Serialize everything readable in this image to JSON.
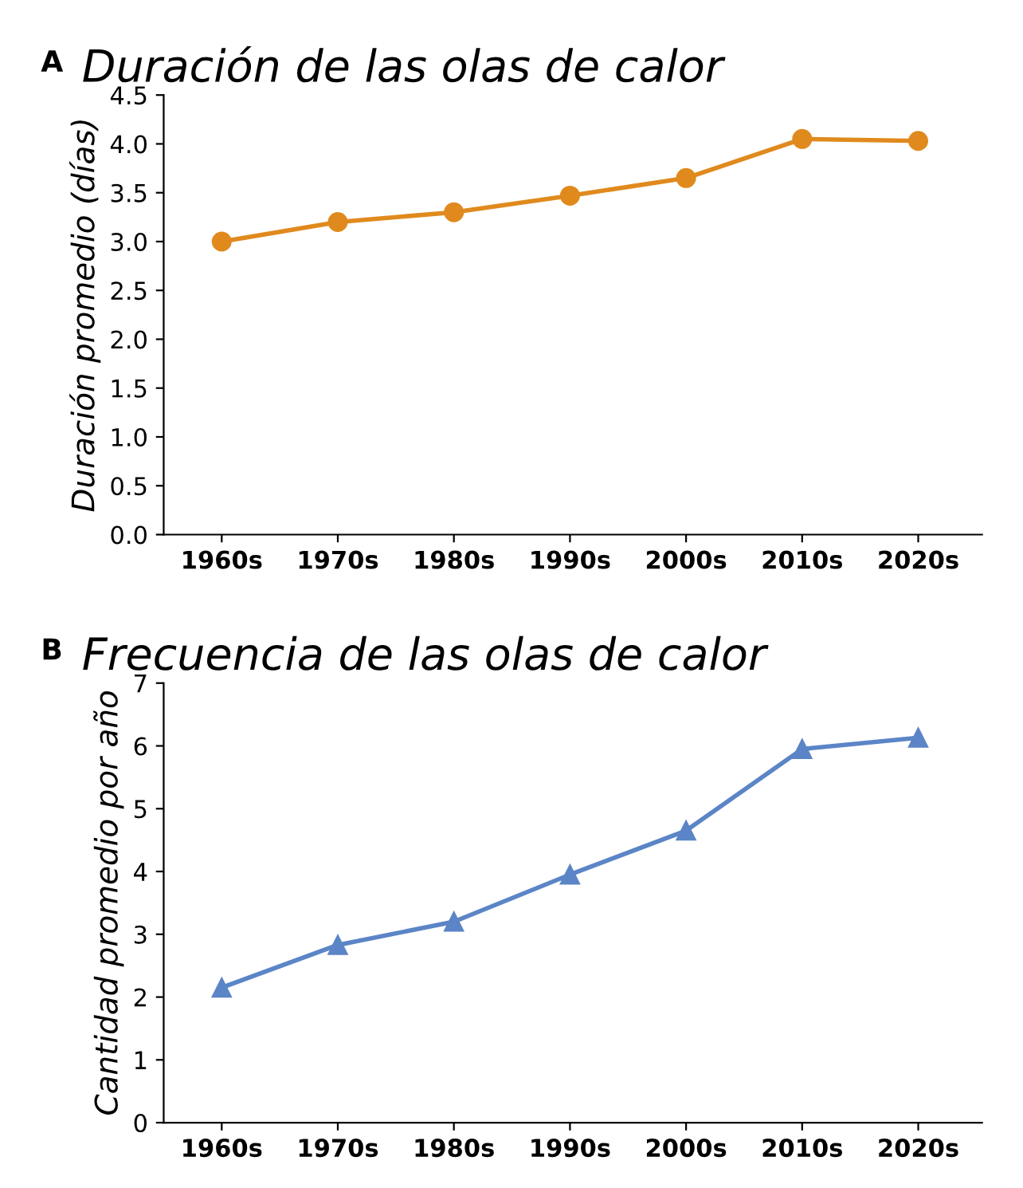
{
  "chart_data": [
    {
      "type": "line",
      "title": "Duración de las olas de calor",
      "annotations": [
        "A"
      ],
      "ylabel": "Duración promedio (días)",
      "categories": [
        "1960s",
        "1970s",
        "1980s",
        "1990s",
        "2000s",
        "2010s",
        "2020s"
      ],
      "series": [
        {
          "color": "#e08a1e",
          "values": [
            3.0,
            3.2,
            3.3,
            3.47,
            3.65,
            4.05,
            4.03
          ]
        }
      ],
      "marker": "circle",
      "ylim": [
        0.0,
        4.5
      ],
      "yticks": [
        {
          "value": 0,
          "label": "0.0"
        },
        0.5,
        {
          "value": 1,
          "label": "1.0"
        },
        1.5,
        {
          "value": 2,
          "label": "2.0"
        },
        2.5,
        {
          "value": 3,
          "label": "3.0"
        },
        3.5,
        {
          "value": 4,
          "label": "4.0"
        },
        4.5
      ],
      "grid": false,
      "legend": false
    },
    {
      "type": "line",
      "title": "Frecuencia de las olas de calor",
      "annotations": [
        "B"
      ],
      "ylabel": "Cantidad promedio por año",
      "categories": [
        "1960s",
        "1970s",
        "1980s",
        "1990s",
        "2000s",
        "2010s",
        "2020s"
      ],
      "series": [
        {
          "color": "#5b85c6",
          "values": [
            2.15,
            2.83,
            3.2,
            3.95,
            4.65,
            5.95,
            6.13
          ]
        }
      ],
      "marker": "triangle",
      "ylim": [
        0,
        7
      ],
      "yticks": [
        0,
        1,
        2,
        3,
        4,
        5,
        6,
        7
      ],
      "grid": false,
      "legend": false
    }
  ]
}
